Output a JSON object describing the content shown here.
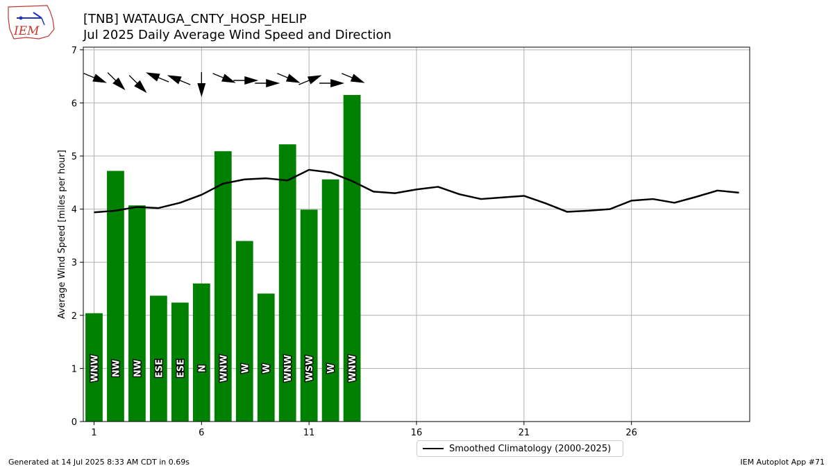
{
  "header": {
    "title_line1": "[TNB] WATAUGA_CNTY_HOSP_HELIP",
    "title_line2": "Jul 2025 Daily Average Wind Speed and Direction"
  },
  "logo": {
    "text": "IEM"
  },
  "footer": {
    "left": "Generated at 14 Jul 2025 8:33 AM CDT in 0.69s",
    "right": "IEM Autoplot App #71"
  },
  "colors": {
    "bar": "#008000",
    "climatology": "#000000",
    "grid": "#b0b0b0"
  },
  "chart_data": {
    "type": "bar",
    "title": "[TNB] WATAUGA_CNTY_HOSP_HELIP",
    "subtitle": "Jul 2025 Daily Average Wind Speed and Direction",
    "ylabel": "Average Wind Speed [miles per hour]",
    "xlabel": "",
    "xlim": [
      0.5,
      31.5
    ],
    "ylim": [
      0,
      7.05
    ],
    "x_ticks": [
      1,
      6,
      11,
      16,
      21,
      26
    ],
    "y_ticks": [
      0,
      1,
      2,
      3,
      4,
      5,
      6,
      7
    ],
    "grid": true,
    "legend_position": "bottom-center",
    "days": [
      1,
      2,
      3,
      4,
      5,
      6,
      7,
      8,
      9,
      10,
      11,
      12,
      13
    ],
    "values": [
      2.04,
      4.72,
      4.07,
      2.37,
      2.24,
      2.6,
      5.09,
      3.4,
      2.41,
      5.22,
      3.99,
      4.56,
      6.15
    ],
    "directions": [
      "WNW",
      "NW",
      "NW",
      "ESE",
      "ESE",
      "N",
      "WNW",
      "W",
      "W",
      "WNW",
      "WSW",
      "W",
      "WNW"
    ],
    "direction_degrees": [
      292.5,
      315,
      315,
      112.5,
      112.5,
      0,
      292.5,
      270,
      270,
      292.5,
      247.5,
      270,
      292.5
    ],
    "series": [
      {
        "name": "Smoothed Climatology (2000-2025)",
        "x": [
          1,
          2,
          3,
          4,
          5,
          6,
          7,
          8,
          9,
          10,
          11,
          12,
          13,
          14,
          15,
          16,
          17,
          18,
          19,
          20,
          21,
          22,
          23,
          24,
          25,
          26,
          27,
          28,
          29,
          30,
          31
        ],
        "values": [
          3.94,
          3.97,
          4.04,
          4.02,
          4.12,
          4.27,
          4.48,
          4.56,
          4.58,
          4.54,
          4.74,
          4.69,
          4.53,
          4.33,
          4.3,
          4.37,
          4.42,
          4.28,
          4.19,
          4.22,
          4.25,
          4.11,
          3.95,
          3.97,
          4.0,
          4.16,
          4.19,
          4.12,
          4.23,
          4.35,
          4.31
        ]
      }
    ]
  }
}
